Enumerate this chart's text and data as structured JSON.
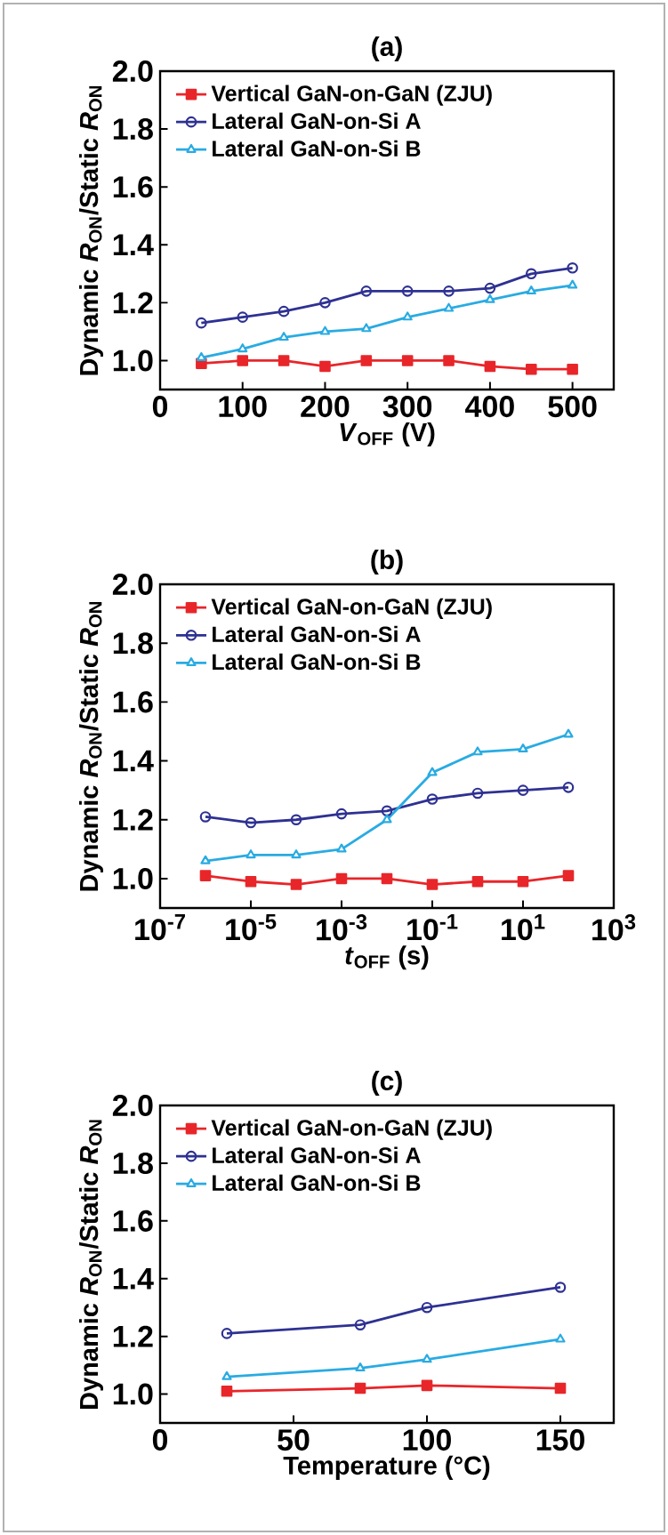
{
  "chart_data": [
    {
      "type": "line",
      "title": "(a)",
      "xlabel": "*V*$_{OFF}$ (V)",
      "ylabel": "Dynamic *R*$_{ON}$/Static *R*$_{ON}$",
      "legend": "top left",
      "grid": false,
      "x": [
        50,
        100,
        150,
        200,
        250,
        300,
        350,
        400,
        450,
        500
      ],
      "xlim": [
        0,
        550
      ],
      "xticks": [
        0,
        100,
        200,
        300,
        400,
        500
      ],
      "ylim": [
        0.9,
        2.0
      ],
      "yticks": [
        {
          "value": 1.0,
          "label": "1.0"
        },
        {
          "value": 1.2,
          "label": "1.2"
        },
        {
          "value": 1.4,
          "label": "1.4"
        },
        {
          "value": 1.6,
          "label": "1.6"
        },
        {
          "value": 1.8,
          "label": "1.8"
        },
        {
          "value": 2.0,
          "label": "2.0"
        }
      ],
      "series": [
        {
          "name": "Vertical GaN-on-GaN (ZJU)",
          "color": "#e8262a",
          "marker": "square",
          "values": [
            0.99,
            1.0,
            1.0,
            0.98,
            1.0,
            1.0,
            1.0,
            0.98,
            0.97,
            0.97
          ]
        },
        {
          "name": "Lateral GaN-on-Si A",
          "color": "#2e3192",
          "marker": "circle",
          "values": [
            1.13,
            1.15,
            1.17,
            1.2,
            1.24,
            1.24,
            1.24,
            1.25,
            1.3,
            1.32
          ]
        },
        {
          "name": "Lateral GaN-on-Si B",
          "color": "#29abe2",
          "marker": "triangle",
          "values": [
            1.01,
            1.04,
            1.08,
            1.1,
            1.11,
            1.15,
            1.18,
            1.21,
            1.24,
            1.26
          ]
        }
      ]
    },
    {
      "type": "line",
      "title": "(b)",
      "xlabel": "*t*$_{OFF}$ (s)",
      "ylabel": "Dynamic *R*$_{ON}$/Static *R*$_{ON}$",
      "legend": "top left",
      "grid": false,
      "log": "x",
      "x": [
        1e-06,
        1e-05,
        0.0001,
        0.001,
        0.01,
        0.1,
        1,
        10,
        100
      ],
      "xlim": [
        1e-07,
        1000
      ],
      "xticks": [
        {
          "value": 1e-07,
          "label": "10$^{-7}$"
        },
        {
          "value": 1e-05,
          "label": "10$^{-5}$"
        },
        {
          "value": 0.001,
          "label": "10$^{-3}$"
        },
        {
          "value": 0.1,
          "label": "10$^{-1}$"
        },
        {
          "value": 10,
          "label": "10$^{1}$"
        },
        {
          "value": 1000,
          "label": "10$^{3}$"
        }
      ],
      "ylim": [
        0.9,
        2.0
      ],
      "yticks": [
        {
          "value": 1.0,
          "label": "1.0"
        },
        {
          "value": 1.2,
          "label": "1.2"
        },
        {
          "value": 1.4,
          "label": "1.4"
        },
        {
          "value": 1.6,
          "label": "1.6"
        },
        {
          "value": 1.8,
          "label": "1.8"
        },
        {
          "value": 2.0,
          "label": "2.0"
        }
      ],
      "series": [
        {
          "name": "Vertical GaN-on-GaN (ZJU)",
          "color": "#e8262a",
          "marker": "square",
          "values": [
            1.01,
            0.99,
            0.98,
            1.0,
            1.0,
            0.98,
            0.99,
            0.99,
            1.01
          ]
        },
        {
          "name": "Lateral GaN-on-Si A",
          "color": "#2e3192",
          "marker": "circle",
          "values": [
            1.21,
            1.19,
            1.2,
            1.22,
            1.23,
            1.27,
            1.29,
            1.3,
            1.31
          ]
        },
        {
          "name": "Lateral GaN-on-Si B",
          "color": "#29abe2",
          "marker": "triangle",
          "values": [
            1.06,
            1.08,
            1.08,
            1.1,
            1.2,
            1.36,
            1.43,
            1.44,
            1.49
          ]
        }
      ]
    },
    {
      "type": "line",
      "title": "(c)",
      "xlabel": "Temperature (°C)",
      "ylabel": "Dynamic *R*$_{ON}$/Static *R*$_{ON}$",
      "legend": "top left",
      "grid": false,
      "x": [
        25,
        75,
        100,
        150
      ],
      "xlim": [
        0,
        170
      ],
      "xticks": [
        0,
        50,
        100,
        150
      ],
      "ylim": [
        0.9,
        2.0
      ],
      "yticks": [
        {
          "value": 1.0,
          "label": "1.0"
        },
        {
          "value": 1.2,
          "label": "1.2"
        },
        {
          "value": 1.4,
          "label": "1.4"
        },
        {
          "value": 1.6,
          "label": "1.6"
        },
        {
          "value": 1.8,
          "label": "1.8"
        },
        {
          "value": 2.0,
          "label": "2.0"
        }
      ],
      "series": [
        {
          "name": "Vertical GaN-on-GaN (ZJU)",
          "color": "#e8262a",
          "marker": "square",
          "values": [
            1.01,
            1.02,
            1.03,
            1.02
          ]
        },
        {
          "name": "Lateral GaN-on-Si A",
          "color": "#2e3192",
          "marker": "circle",
          "values": [
            1.21,
            1.24,
            1.3,
            1.37
          ]
        },
        {
          "name": "Lateral GaN-on-Si B",
          "color": "#29abe2",
          "marker": "triangle",
          "values": [
            1.06,
            1.09,
            1.12,
            1.19
          ]
        }
      ]
    }
  ]
}
